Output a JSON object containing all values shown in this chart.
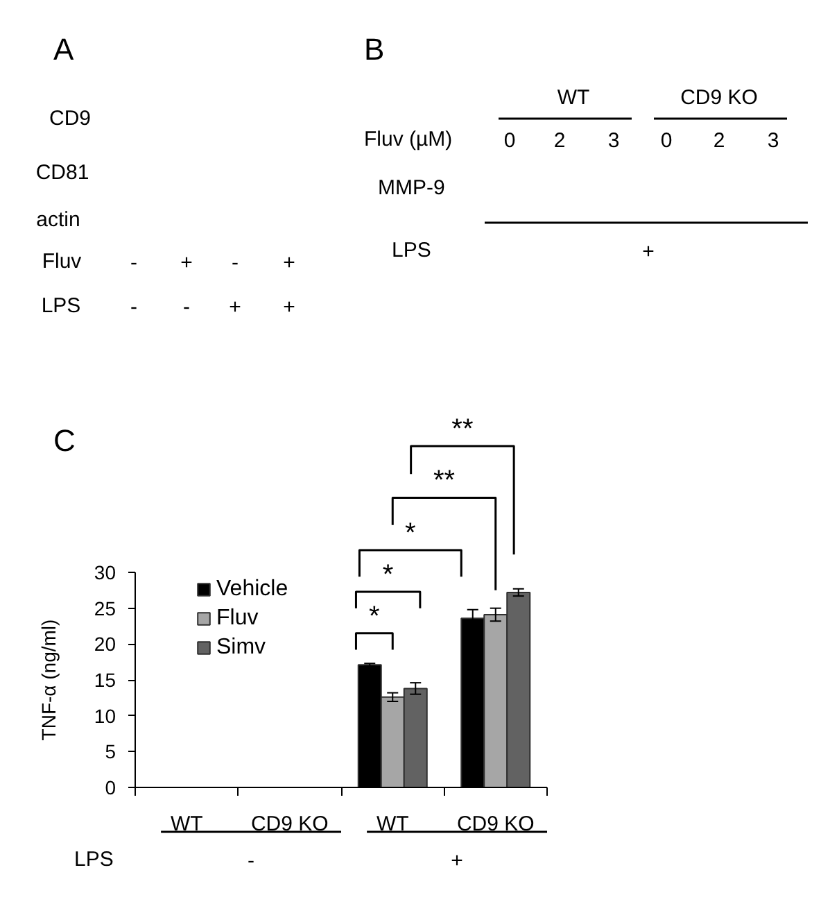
{
  "chart_data": [
    {
      "type": "other",
      "title": "A",
      "annotations": [
        "CD9",
        "CD81",
        "actin",
        "Fluv",
        "-",
        "+",
        "-",
        "+",
        "LPS",
        "-",
        "-",
        "+",
        "+"
      ]
    },
    {
      "type": "other",
      "title": "B",
      "annotations": [
        "WT",
        "CD9 KO",
        "Fluv (µM)",
        "0",
        "2",
        "3",
        "0",
        "2",
        "3",
        "MMP-9",
        "LPS",
        "+"
      ]
    },
    {
      "type": "bar",
      "title": "C",
      "ylabel": "TNF-α (ng/ml)",
      "categories": [
        "WT",
        "CD9 KO",
        "WT",
        "CD9 KO"
      ],
      "series": [
        {
          "name": "Vehicle",
          "color": "#000000",
          "values": [
            null,
            null,
            17.1,
            23.6
          ],
          "errors": [
            null,
            null,
            0.2,
            1.2
          ]
        },
        {
          "name": "Fluv",
          "color": "#a6a6a6",
          "values": [
            null,
            null,
            12.6,
            24.1
          ],
          "errors": [
            null,
            null,
            0.6,
            0.9
          ]
        },
        {
          "name": "Simv",
          "color": "#626262",
          "values": [
            null,
            null,
            13.8,
            27.2
          ],
          "errors": [
            null,
            null,
            0.8,
            0.5
          ]
        }
      ],
      "ylim": [
        0,
        30
      ],
      "yticks": [
        0,
        5,
        10,
        15,
        20,
        25,
        30
      ],
      "legend": "top left",
      "annotations": [
        "*",
        "*",
        "*",
        "**",
        "**",
        "LPS",
        "-",
        "+"
      ]
    }
  ]
}
